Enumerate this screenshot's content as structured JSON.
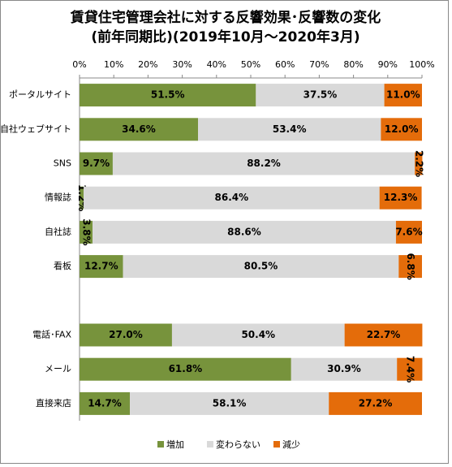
{
  "chart_data": {
    "type": "stacked_bar_horizontal",
    "title": "賃貸住宅管理会社に対する反響効果･反響数の変化",
    "subtitle": "(前年同期比)(2019年10月～2020年3月)",
    "categories": [
      "ポータルサイト",
      "自社ウェブサイト",
      "SNS",
      "情報誌",
      "自社誌",
      "看板",
      null,
      "電話･FAX",
      "メール",
      "直接来店"
    ],
    "series": [
      {
        "name": "増加",
        "color": "#77933c",
        "values": [
          51.5,
          34.6,
          9.7,
          1.2,
          3.8,
          12.7,
          null,
          27.0,
          61.8,
          14.7
        ],
        "value_labels": [
          "51.5%",
          "34.6%",
          "9.7%",
          "1.2%",
          "3.8%",
          "12.7%",
          null,
          "27.0%",
          "61.8%",
          "14.7%"
        ]
      },
      {
        "name": "変わらない",
        "color": "#d9d9d9",
        "values": [
          37.5,
          53.4,
          88.2,
          86.4,
          88.6,
          80.5,
          null,
          50.4,
          30.9,
          58.1
        ],
        "value_labels": [
          "37.5%",
          "53.4%",
          "88.2%",
          "86.4%",
          "88.6%",
          "80.5%",
          null,
          "50.4%",
          "30.9%",
          "58.1%"
        ]
      },
      {
        "name": "減少",
        "color": "#e46c0a",
        "values": [
          11.0,
          12.0,
          2.2,
          12.3,
          7.6,
          6.8,
          null,
          22.7,
          7.4,
          27.2
        ],
        "value_labels": [
          "11.0%",
          "12.0%",
          "2.2%",
          "12.3%",
          "7.6%",
          "6.8%",
          null,
          "22.7%",
          "7.4%",
          "27.2%"
        ]
      }
    ],
    "xlim": [
      0,
      100
    ],
    "xticks": [
      {
        "value": 0,
        "label": "0%"
      },
      {
        "value": 10,
        "label": "10%"
      },
      {
        "value": 20,
        "label": "20%"
      },
      {
        "value": 30,
        "label": "30%"
      },
      {
        "value": 40,
        "label": "40%"
      },
      {
        "value": 50,
        "label": "50%"
      },
      {
        "value": 60,
        "label": "60%"
      },
      {
        "value": 70,
        "label": "70%"
      },
      {
        "value": 80,
        "label": "80%"
      },
      {
        "value": 90,
        "label": "90%"
      },
      {
        "value": 100,
        "label": "100%"
      }
    ],
    "legend": "bottom"
  }
}
